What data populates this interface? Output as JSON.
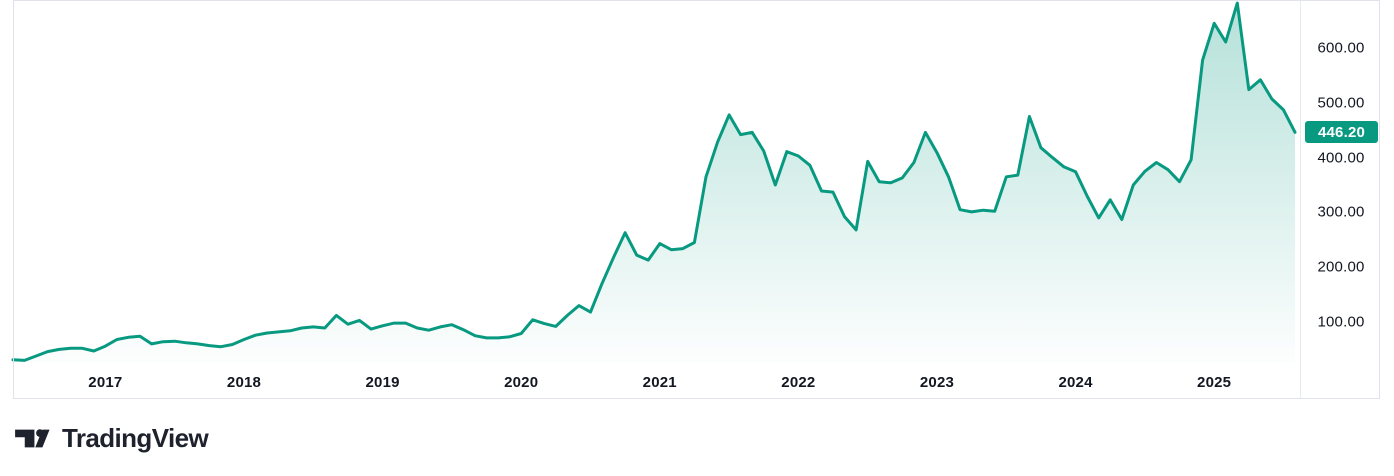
{
  "branding": {
    "logo_text": "TradingView"
  },
  "colors": {
    "accent": "#089981",
    "text": "#131722",
    "border": "#e0e3eb",
    "badge_text": "#ffffff",
    "background": "#ffffff"
  },
  "chart_data": {
    "type": "area",
    "title": "",
    "interval": "monthly",
    "x_start": "2016-05",
    "x_end": "2025-08",
    "grid": false,
    "legend_position": "none",
    "x_tick_labels": [
      "2017",
      "2018",
      "2019",
      "2020",
      "2021",
      "2022",
      "2023",
      "2024",
      "2025"
    ],
    "y_tick_labels": [
      "100.00",
      "200.00",
      "300.00",
      "400.00",
      "500.00",
      "600.00"
    ],
    "y_tick_values": [
      100,
      200,
      300,
      400,
      500,
      600
    ],
    "ylim": [
      25,
      685
    ],
    "last_price": 446.2,
    "last_price_label": "446.20",
    "values": [
      31,
      30,
      38,
      46,
      50,
      52,
      52,
      47,
      56,
      68,
      72,
      74,
      60,
      64,
      65,
      62,
      60,
      57,
      55,
      59,
      68,
      76,
      80,
      82,
      84,
      89,
      91,
      89,
      112,
      96,
      103,
      87,
      93,
      98,
      98,
      89,
      85,
      91,
      95,
      86,
      75,
      71,
      71,
      73,
      79,
      104,
      97,
      92,
      112,
      130,
      118,
      170,
      218,
      263,
      222,
      213,
      243,
      232,
      234,
      245,
      365,
      428,
      478,
      442,
      446,
      412,
      350,
      411,
      403,
      386,
      339,
      337,
      292,
      268,
      393,
      356,
      354,
      363,
      391,
      446,
      409,
      365,
      305,
      301,
      304,
      302,
      365,
      368,
      475,
      418,
      400,
      383,
      374,
      330,
      290,
      323,
      287,
      350,
      375,
      391,
      378,
      356,
      396,
      578,
      645,
      611,
      682,
      524,
      542,
      507,
      487,
      446.2
    ]
  }
}
